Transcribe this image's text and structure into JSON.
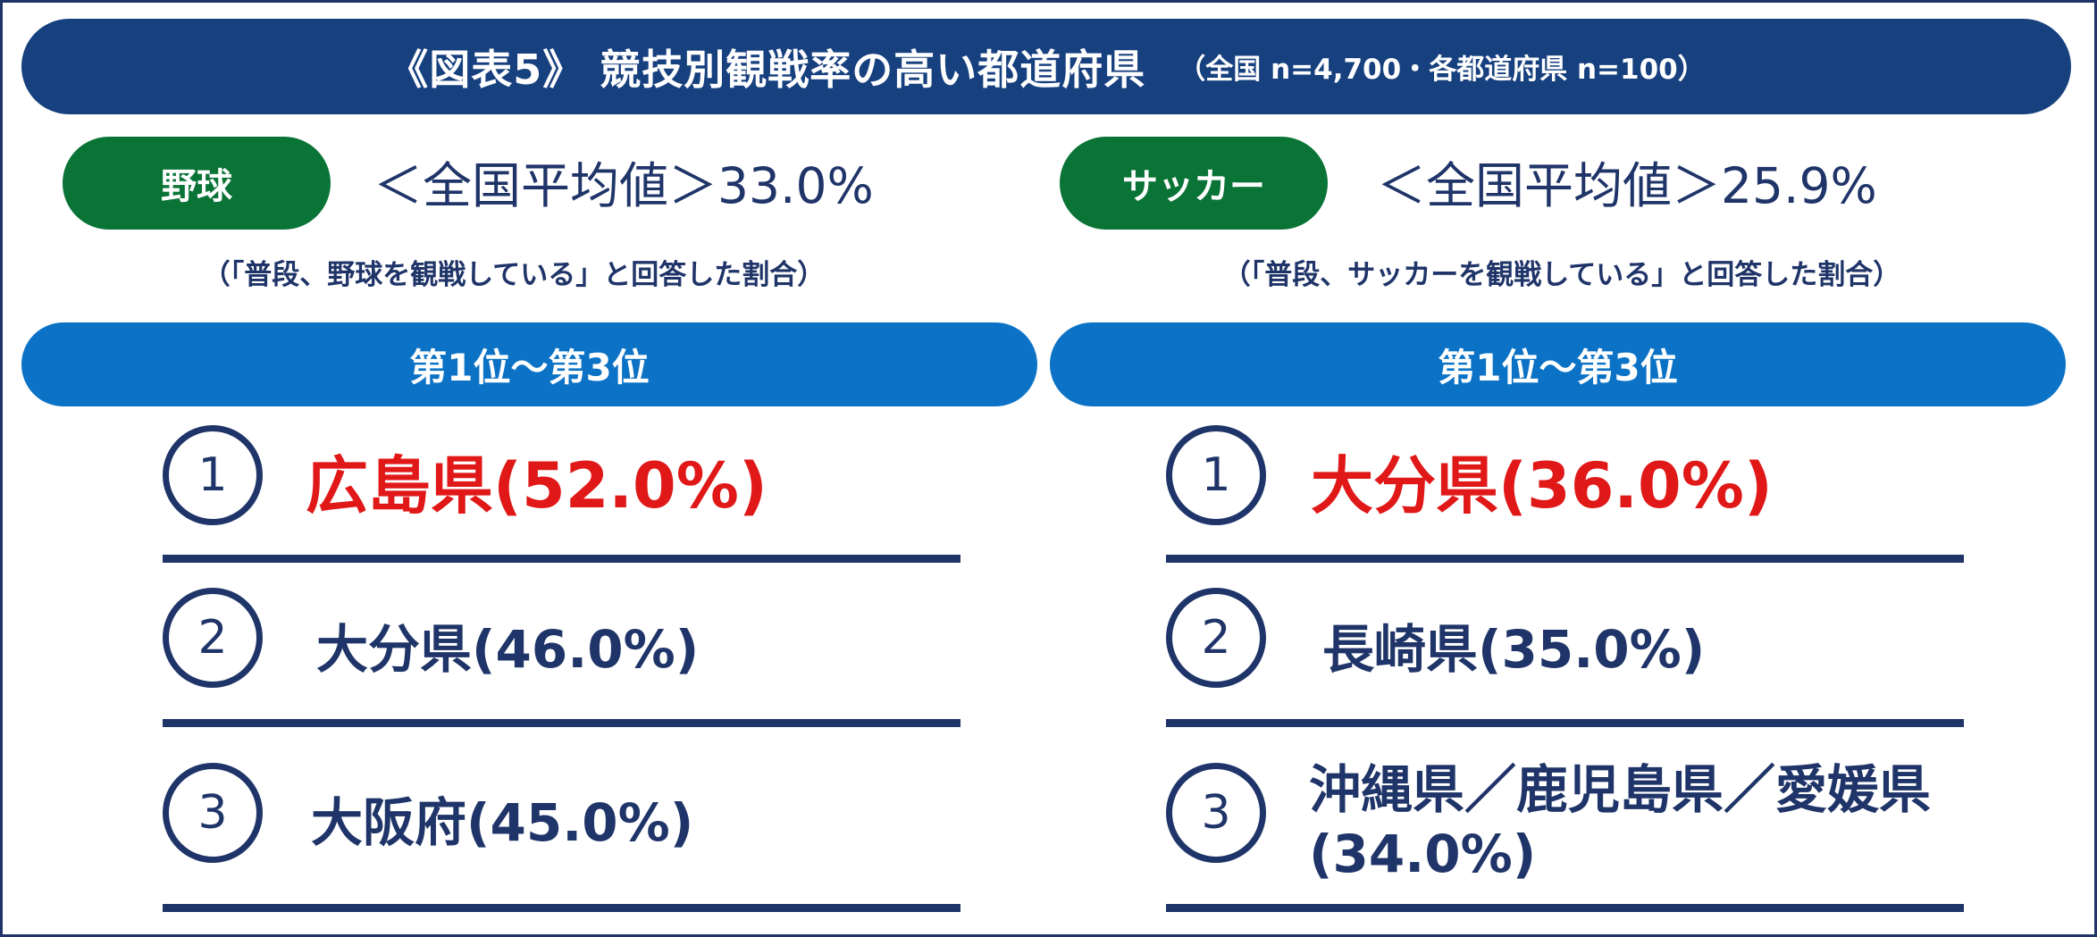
{
  "title": {
    "main": "《図表5》 競技別観戦率の高い都道府県",
    "sub": "（全国 n=4,700・各都道府県 n=100）"
  },
  "left": {
    "sport": "野球",
    "avg_prefix": "＜全国平均値＞",
    "avg_value": "33.0%",
    "note": "（「普段、野球を観戦している」と回答した割合）",
    "rank_header": "第1位～第3位",
    "ranks": [
      {
        "num": "1",
        "text": "広島県(52.0%)"
      },
      {
        "num": "2",
        "text": "大分県(46.0%)"
      },
      {
        "num": "3",
        "text": "大阪府(45.0%)"
      }
    ]
  },
  "right": {
    "sport": "サッカー",
    "avg_prefix": "＜全国平均値＞",
    "avg_value": "25.9%",
    "note": "（「普段、サッカーを観戦している」と回答した割合）",
    "rank_header": "第1位～第3位",
    "ranks": [
      {
        "num": "1",
        "text": "大分県(36.0%)"
      },
      {
        "num": "2",
        "text": "長崎県(35.0%)"
      },
      {
        "num": "3",
        "text": "沖縄県／鹿児島県／愛媛県(34.0%)"
      }
    ]
  },
  "colors": {
    "title_bar": "#17407f",
    "sport_pill": "#0a7336",
    "rank_bar": "#0b72c5",
    "top_rank_text": "#e01818",
    "navy": "#1f3468"
  }
}
